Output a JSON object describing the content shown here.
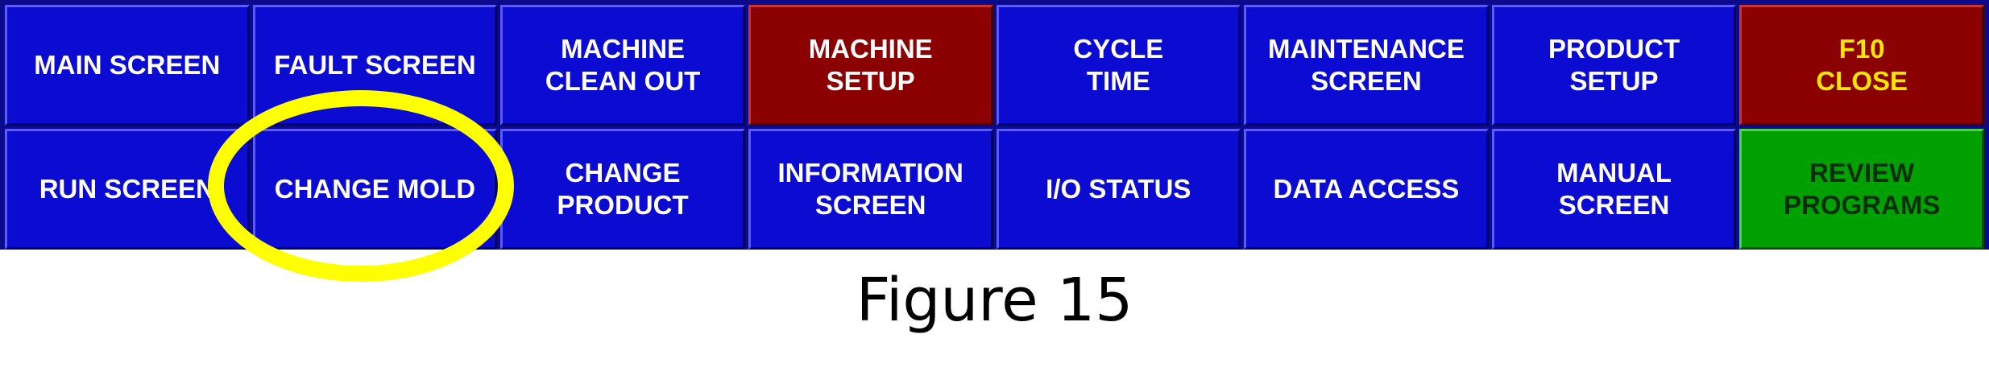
{
  "buttons": [
    {
      "label": "MAIN SCREEN",
      "color": "blue"
    },
    {
      "label": "FAULT SCREEN",
      "color": "blue"
    },
    {
      "label": "MACHINE\nCLEAN OUT",
      "color": "blue"
    },
    {
      "label": "MACHINE\nSETUP",
      "color": "red"
    },
    {
      "label": "CYCLE\nTIME",
      "color": "blue"
    },
    {
      "label": "MAINTENANCE\nSCREEN",
      "color": "blue"
    },
    {
      "label": "PRODUCT\nSETUP",
      "color": "blue"
    },
    {
      "label": "F10\nCLOSE",
      "color": "red-yellow"
    },
    {
      "label": "RUN SCREEN",
      "color": "blue"
    },
    {
      "label": "CHANGE MOLD",
      "color": "blue"
    },
    {
      "label": "CHANGE\nPRODUCT",
      "color": "blue"
    },
    {
      "label": "INFORMATION\nSCREEN",
      "color": "blue"
    },
    {
      "label": "I/O STATUS",
      "color": "blue"
    },
    {
      "label": "DATA ACCESS",
      "color": "blue"
    },
    {
      "label": "MANUAL\nSCREEN",
      "color": "blue"
    },
    {
      "label": "REVIEW\nPROGRAMS",
      "color": "green"
    }
  ],
  "caption": "Figure 15",
  "colors": {
    "button_blue": "#0b0bd2",
    "button_red": "#8b0000",
    "button_green": "#00a000",
    "highlight": "#ffff00",
    "close_text": "#ffe500"
  }
}
